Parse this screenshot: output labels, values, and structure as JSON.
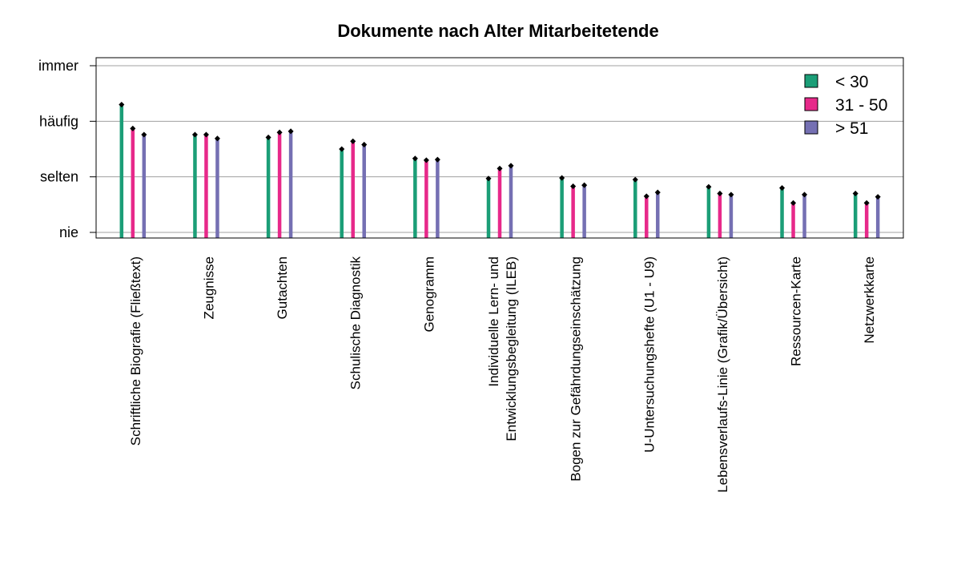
{
  "chart_data": {
    "type": "bar",
    "title": "Dokumente nach Alter Mitarbeitetende",
    "xlabel": "",
    "ylabel": "",
    "ylim": [
      0,
      3
    ],
    "y_ticks": [
      {
        "value": 0,
        "label": "nie"
      },
      {
        "value": 1,
        "label": "selten"
      },
      {
        "value": 2,
        "label": "häufig"
      },
      {
        "value": 3,
        "label": "immer"
      }
    ],
    "grid": "horizontal",
    "legend_position": "top-right",
    "categories": [
      [
        "Schriftliche Biografie (Fließtext)"
      ],
      [
        "Zeugnisse"
      ],
      [
        "Gutachten"
      ],
      [
        "Schulische Diagnostik"
      ],
      [
        "Genogramm"
      ],
      [
        "Individuelle Lern- und",
        "Entwicklungsbegleitung (ILEB)"
      ],
      [
        "Bogen zur Gefährdungseinschätzung"
      ],
      [
        "U-Untersuchungshefte (U1 - U9)"
      ],
      [
        "Lebensverlaufs-Linie (Grafik/Übersicht)"
      ],
      [
        "Ressourcen-Karte"
      ],
      [
        "Netzwerkkarte"
      ]
    ],
    "series": [
      {
        "name": "< 30",
        "color": "#1b9e77",
        "values": [
          2.3,
          1.76,
          1.71,
          1.5,
          1.33,
          0.97,
          0.98,
          0.95,
          0.82,
          0.8,
          0.7
        ]
      },
      {
        "name": "31 - 50",
        "color": "#e7298a",
        "values": [
          1.87,
          1.76,
          1.8,
          1.64,
          1.3,
          1.15,
          0.83,
          0.65,
          0.7,
          0.53,
          0.53
        ]
      },
      {
        "name": "> 51",
        "color": "#7570b3",
        "values": [
          1.76,
          1.69,
          1.82,
          1.58,
          1.31,
          1.2,
          0.85,
          0.72,
          0.68,
          0.68,
          0.64
        ]
      }
    ]
  }
}
